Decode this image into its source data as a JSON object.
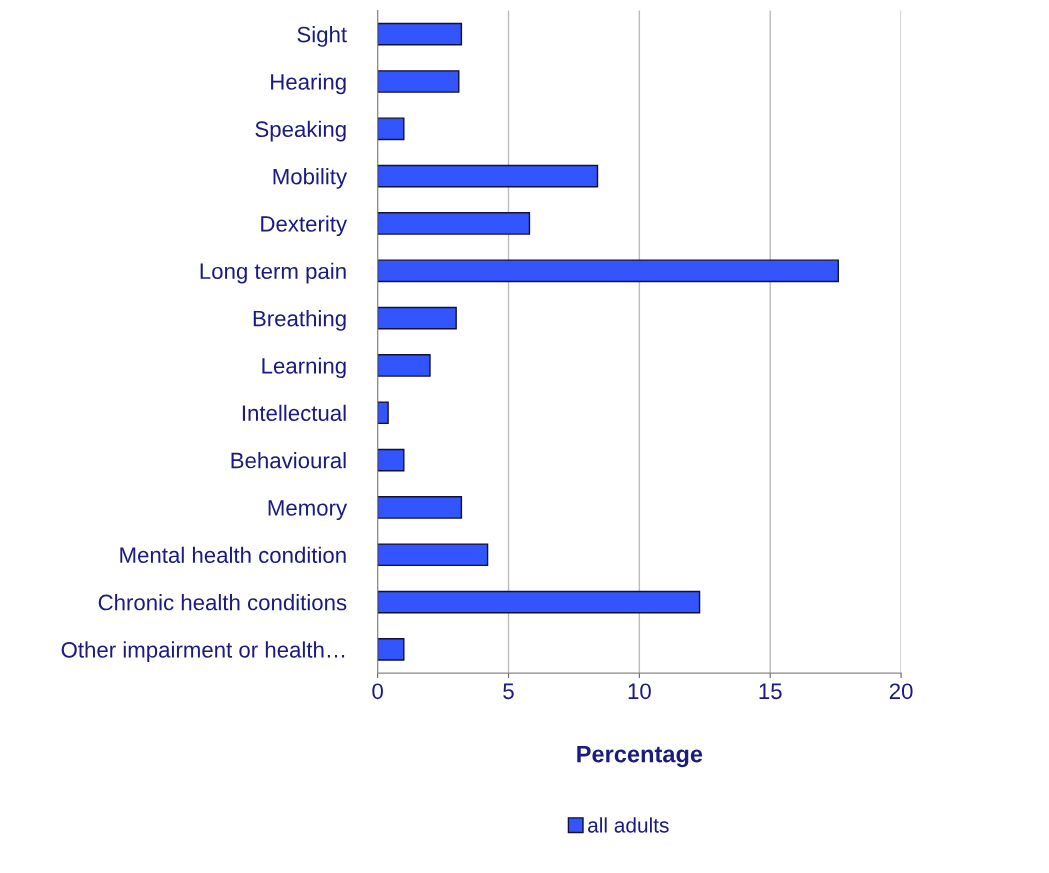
{
  "chart_data": {
    "type": "bar",
    "orientation": "horizontal",
    "xlabel": "Percentage",
    "categories": [
      "Sight",
      "Hearing",
      "Speaking",
      "Mobility",
      "Dexterity",
      "Long term pain",
      "Breathing",
      "Learning",
      "Intellectual",
      "Behavioural",
      "Memory",
      "Mental health condition",
      "Chronic health conditions",
      "Other impairment or health…"
    ],
    "series": [
      {
        "name": "all adults",
        "color": "#3355ff",
        "values": [
          3.2,
          3.1,
          1.0,
          8.4,
          5.8,
          17.6,
          3.0,
          2.0,
          0.4,
          1.0,
          3.2,
          4.2,
          12.3,
          1.0
        ]
      }
    ],
    "xlim": [
      0,
      20
    ],
    "xticks": [
      0,
      5,
      10,
      15,
      20
    ],
    "grid": "x",
    "legend": "bottom"
  }
}
